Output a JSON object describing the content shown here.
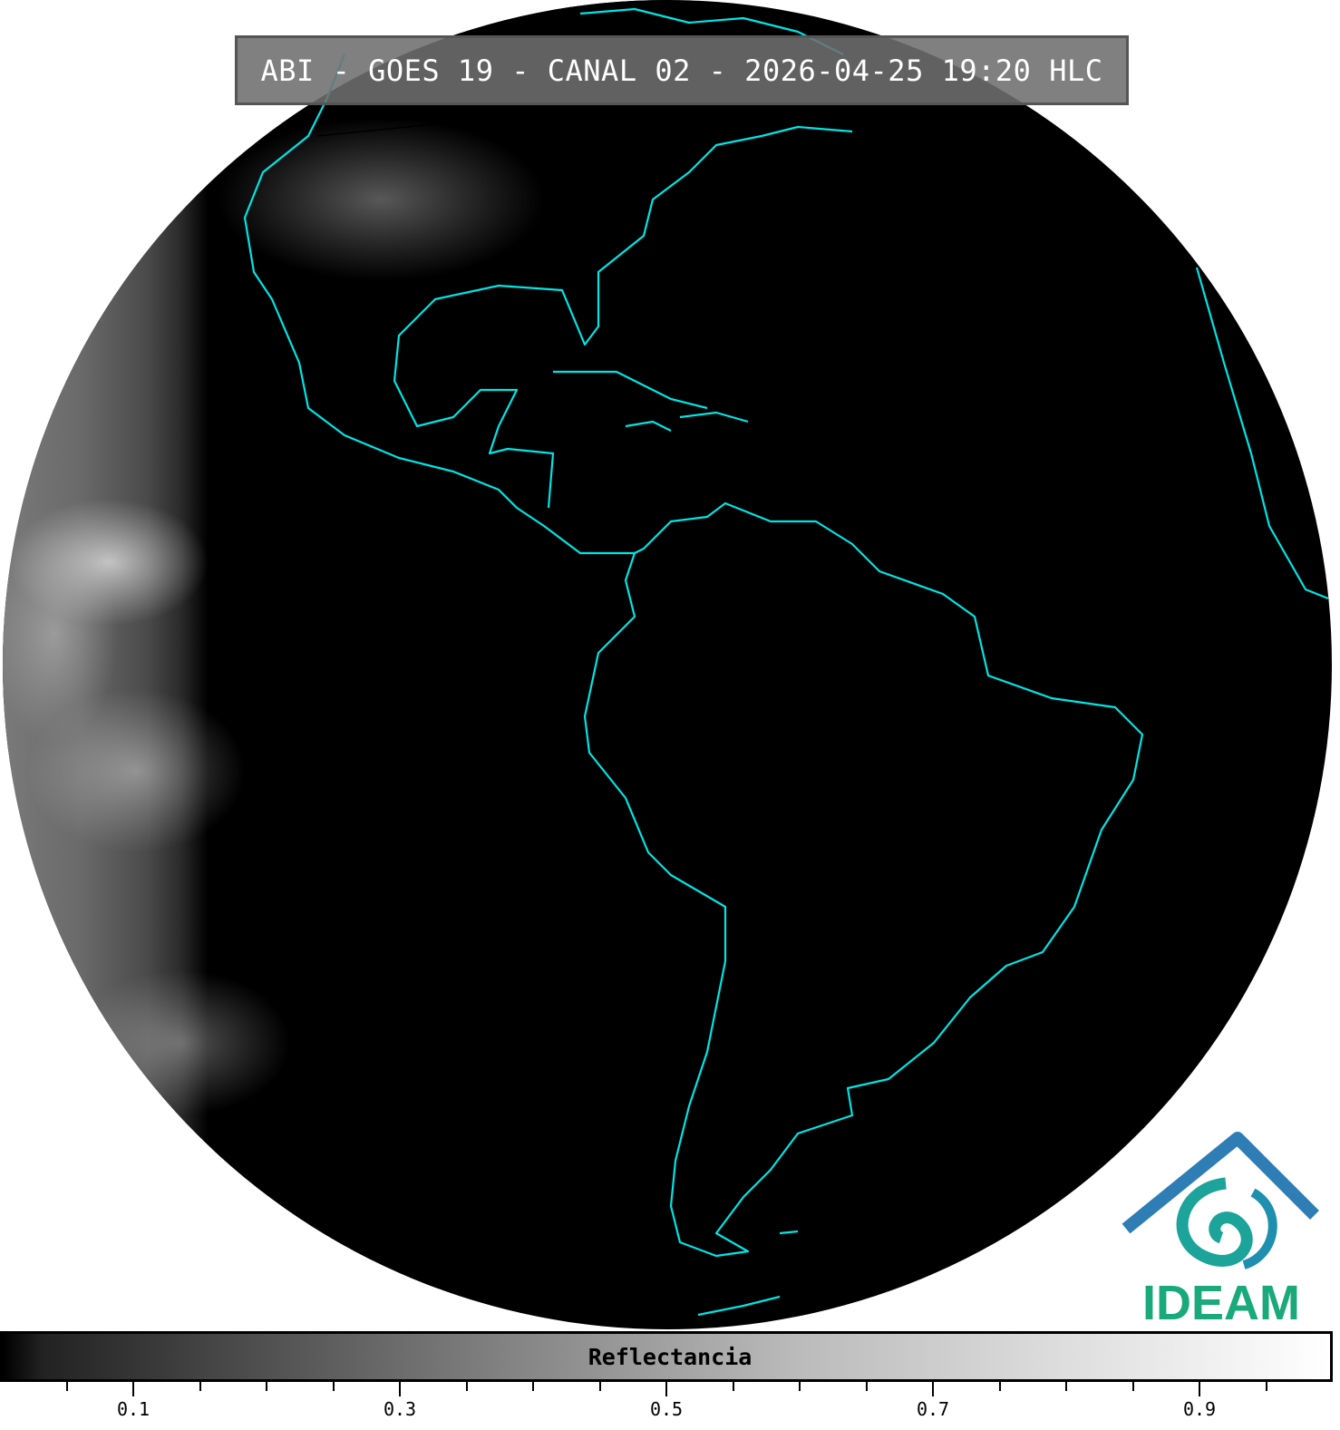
{
  "title": "ABI - GOES 19 - CANAL 02 - 2026-04-25 19:20 HLC",
  "colorbar": {
    "label": "Reflectancia",
    "range": [
      0,
      1
    ],
    "colormap": "grayscale",
    "major_ticks": [
      "0.1",
      "0.3",
      "0.5",
      "0.7",
      "0.9"
    ],
    "minor_tick_step": 0.05
  },
  "map": {
    "projection": "geostationary full disk",
    "coastline_color": "#00e5e5",
    "border_color": "#000000"
  },
  "logo": {
    "text": "IDEAM",
    "text_color": "#1aa97a",
    "roof_color": "#2a6fb0"
  }
}
